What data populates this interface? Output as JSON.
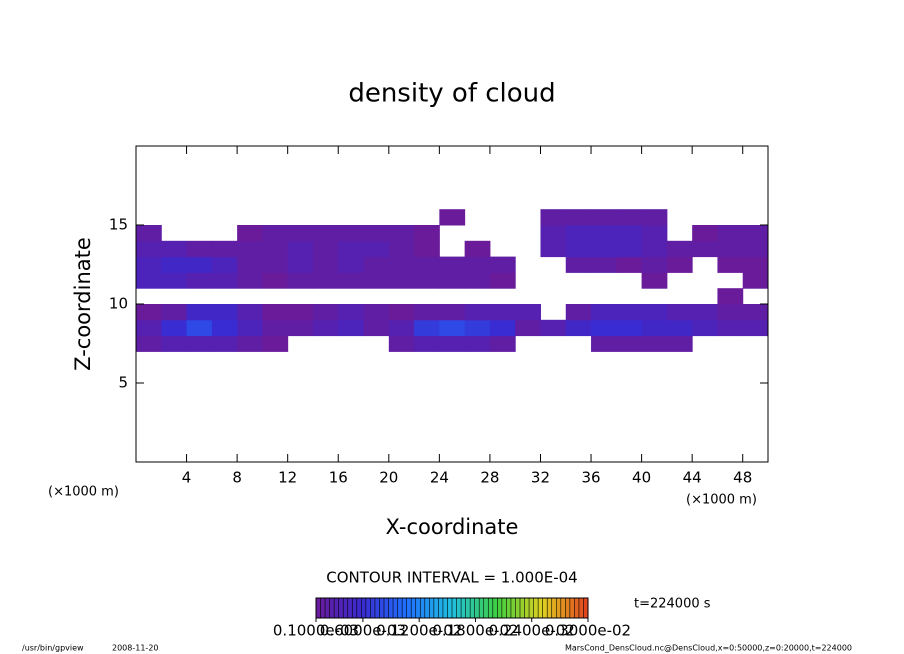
{
  "chart_data": {
    "type": "contour",
    "title": "density of cloud",
    "x_label": "X-coordinate",
    "y_label": "Z-coordinate",
    "x_unit": "(×1000 m)",
    "y_unit": "(×1000 m)",
    "xlim": [
      0,
      50
    ],
    "ylim": [
      0,
      20
    ],
    "xticks": [
      4,
      8,
      12,
      16,
      20,
      24,
      28,
      32,
      36,
      40,
      44,
      48
    ],
    "yticks": [
      5,
      10,
      15
    ],
    "x": [
      1,
      3,
      5,
      7,
      9,
      11,
      13,
      15,
      17,
      19,
      21,
      23,
      25,
      27,
      29,
      31,
      33,
      35,
      37,
      39,
      41,
      43,
      45,
      47,
      49
    ],
    "y": [
      7.5,
      8.5,
      9.5,
      10.5,
      11.5,
      12.5,
      13.5,
      14.5,
      15.5
    ],
    "values": [
      [
        0.0002,
        0.0003,
        0.0003,
        0.0003,
        0.0002,
        0.0001,
        null,
        null,
        null,
        null,
        0.0002,
        0.0003,
        0.0003,
        0.0003,
        0.0002,
        null,
        null,
        null,
        0.0002,
        0.0002,
        0.0002,
        0.0002,
        null,
        null,
        null
      ],
      [
        0.0003,
        0.0006,
        0.0008,
        0.0006,
        0.0004,
        0.0002,
        0.0002,
        0.0003,
        0.0004,
        0.0002,
        0.0003,
        0.0007,
        0.0008,
        0.0007,
        0.0006,
        0.0002,
        0.0003,
        0.0005,
        0.0006,
        0.0006,
        0.0005,
        0.0005,
        0.0004,
        0.0003,
        0.0003
      ],
      [
        0.0001,
        0.0002,
        0.0005,
        0.0005,
        0.0003,
        0.0001,
        0.0001,
        0.0002,
        0.0003,
        0.0002,
        0.0001,
        0.0002,
        0.0002,
        0.0003,
        0.0003,
        0.0003,
        null,
        0.0002,
        0.0004,
        0.0004,
        0.0004,
        0.0003,
        0.0003,
        0.0002,
        0.0002
      ],
      [
        null,
        null,
        null,
        null,
        null,
        null,
        null,
        null,
        null,
        null,
        null,
        null,
        null,
        null,
        null,
        null,
        null,
        null,
        null,
        null,
        null,
        null,
        null,
        0.0001,
        null
      ],
      [
        0.0004,
        0.0004,
        0.0003,
        0.0003,
        0.0002,
        0.0001,
        0.0002,
        0.0002,
        0.0002,
        0.0002,
        0.0002,
        0.0002,
        0.0002,
        0.0002,
        0.0001,
        null,
        null,
        null,
        null,
        null,
        0.0001,
        null,
        null,
        null,
        0.0001
      ],
      [
        0.0004,
        0.0005,
        0.0005,
        0.0004,
        0.0002,
        0.0002,
        0.0003,
        0.0002,
        0.0003,
        0.0002,
        0.0002,
        0.0002,
        0.0002,
        0.0002,
        0.0002,
        null,
        null,
        0.0002,
        0.0002,
        0.0001,
        0.0002,
        0.0001,
        null,
        0.0001,
        0.0001
      ],
      [
        0.0003,
        0.0003,
        0.0002,
        0.0002,
        0.0002,
        0.0002,
        0.0003,
        0.0002,
        0.0003,
        0.0003,
        0.0002,
        0.0001,
        null,
        0.0001,
        null,
        null,
        0.0003,
        0.0004,
        0.0004,
        0.0004,
        0.0003,
        0.0002,
        0.0002,
        0.0002,
        0.0002
      ],
      [
        0.0002,
        null,
        null,
        null,
        0.0001,
        0.0002,
        0.0002,
        0.0002,
        0.0002,
        0.0002,
        0.0002,
        0.0001,
        null,
        null,
        null,
        null,
        0.0003,
        0.0004,
        0.0004,
        0.0004,
        0.0003,
        null,
        0.0001,
        0.0002,
        0.0002
      ],
      [
        null,
        null,
        null,
        null,
        null,
        null,
        null,
        null,
        null,
        null,
        null,
        null,
        0.0001,
        null,
        null,
        null,
        0.0002,
        0.0002,
        0.0002,
        0.0002,
        0.0002,
        null,
        null,
        null,
        null
      ]
    ],
    "colors": [
      "#6a1b9a",
      "#3a2ad0",
      "#2070ff",
      "#20c0e0",
      "#40d040",
      "#e0d020",
      "#e04020"
    ],
    "colorbar_ticks": [
      {
        "value": 0.0001,
        "label": "0.1000e-03"
      },
      {
        "value": 0.0006,
        "label": "0.6000e-03"
      },
      {
        "value": 0.0012,
        "label": "0.1200e-02"
      },
      {
        "value": 0.0018,
        "label": "0.1800e-02"
      },
      {
        "value": 0.0024,
        "label": "0.2400e-02"
      },
      {
        "value": 0.003,
        "label": "0.3000e-02"
      }
    ],
    "contour_interval": "CONTOUR INTERVAL = 1.000E-04",
    "time": "t=224000 s",
    "program": "/usr/bin/gpview",
    "date": "2008-11-20",
    "source": "MarsCond_DensCloud.nc@DensCloud,x=0:50000,z=0:20000,t=224000"
  }
}
